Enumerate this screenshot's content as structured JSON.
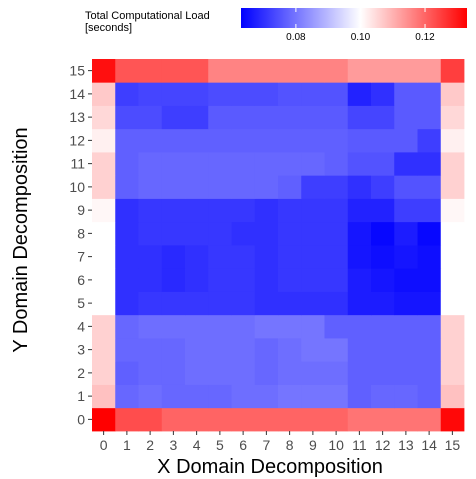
{
  "chart_data": {
    "type": "heatmap",
    "xlabel": "X Domain Decomposition",
    "ylabel": "Y Domain Decomposition",
    "x_categories": [
      "0",
      "1",
      "2",
      "3",
      "4",
      "5",
      "6",
      "7",
      "8",
      "9",
      "10",
      "11",
      "12",
      "13",
      "14",
      "15"
    ],
    "y_categories": [
      "0",
      "1",
      "2",
      "3",
      "4",
      "5",
      "6",
      "7",
      "8",
      "9",
      "10",
      "11",
      "12",
      "13",
      "14",
      "15"
    ],
    "legend": {
      "title_lines": [
        "Total Computational Load",
        "[seconds]"
      ],
      "ticks": [
        "0.08",
        "0.10",
        "0.12"
      ],
      "tick_values": [
        0.08,
        0.1,
        0.12
      ],
      "range": [
        0.063,
        0.133
      ],
      "midpoint": 0.1,
      "placement": "top-right"
    },
    "colors": {
      "low": "#0000ff",
      "mid": "#ffffff",
      "high": "#ff0000"
    },
    "grid": false,
    "z": [
      [
        0.133,
        0.123,
        0.123,
        0.12,
        0.12,
        0.12,
        0.12,
        0.12,
        0.12,
        0.12,
        0.12,
        0.118,
        0.118,
        0.118,
        0.118,
        0.132
      ],
      [
        0.108,
        0.078,
        0.079,
        0.078,
        0.078,
        0.078,
        0.079,
        0.079,
        0.08,
        0.08,
        0.08,
        0.077,
        0.078,
        0.078,
        0.077,
        0.108
      ],
      [
        0.106,
        0.077,
        0.078,
        0.078,
        0.079,
        0.079,
        0.079,
        0.078,
        0.079,
        0.079,
        0.079,
        0.077,
        0.077,
        0.077,
        0.077,
        0.106
      ],
      [
        0.106,
        0.078,
        0.078,
        0.078,
        0.079,
        0.079,
        0.079,
        0.078,
        0.079,
        0.08,
        0.08,
        0.077,
        0.077,
        0.077,
        0.077,
        0.106
      ],
      [
        0.106,
        0.078,
        0.079,
        0.079,
        0.079,
        0.079,
        0.079,
        0.08,
        0.08,
        0.08,
        0.077,
        0.077,
        0.077,
        0.077,
        0.077,
        0.106
      ],
      [
        0.1,
        0.07,
        0.071,
        0.071,
        0.071,
        0.071,
        0.071,
        0.07,
        0.07,
        0.07,
        0.07,
        0.067,
        0.067,
        0.066,
        0.066,
        0.1
      ],
      [
        0.1,
        0.07,
        0.07,
        0.069,
        0.07,
        0.071,
        0.071,
        0.07,
        0.071,
        0.071,
        0.071,
        0.067,
        0.066,
        0.065,
        0.065,
        0.1
      ],
      [
        0.1,
        0.07,
        0.07,
        0.069,
        0.07,
        0.071,
        0.071,
        0.07,
        0.071,
        0.071,
        0.071,
        0.066,
        0.065,
        0.066,
        0.065,
        0.1
      ],
      [
        0.1,
        0.07,
        0.071,
        0.071,
        0.071,
        0.071,
        0.07,
        0.07,
        0.071,
        0.071,
        0.071,
        0.066,
        0.064,
        0.067,
        0.064,
        0.1
      ],
      [
        0.101,
        0.07,
        0.071,
        0.071,
        0.071,
        0.071,
        0.071,
        0.07,
        0.071,
        0.071,
        0.071,
        0.068,
        0.068,
        0.072,
        0.072,
        0.101
      ],
      [
        0.106,
        0.077,
        0.078,
        0.078,
        0.078,
        0.078,
        0.078,
        0.078,
        0.077,
        0.072,
        0.072,
        0.07,
        0.072,
        0.075,
        0.075,
        0.106
      ],
      [
        0.106,
        0.077,
        0.078,
        0.078,
        0.078,
        0.078,
        0.078,
        0.078,
        0.078,
        0.078,
        0.077,
        0.075,
        0.075,
        0.07,
        0.07,
        0.106
      ],
      [
        0.102,
        0.077,
        0.077,
        0.077,
        0.077,
        0.077,
        0.077,
        0.077,
        0.077,
        0.077,
        0.077,
        0.076,
        0.076,
        0.076,
        0.072,
        0.102
      ],
      [
        0.105,
        0.074,
        0.074,
        0.072,
        0.072,
        0.076,
        0.076,
        0.076,
        0.076,
        0.076,
        0.076,
        0.073,
        0.073,
        0.076,
        0.076,
        0.105
      ],
      [
        0.107,
        0.072,
        0.073,
        0.073,
        0.073,
        0.074,
        0.074,
        0.074,
        0.075,
        0.075,
        0.075,
        0.068,
        0.07,
        0.076,
        0.076,
        0.107
      ],
      [
        0.131,
        0.122,
        0.122,
        0.122,
        0.122,
        0.116,
        0.116,
        0.116,
        0.116,
        0.116,
        0.116,
        0.113,
        0.113,
        0.113,
        0.113,
        0.125
      ]
    ]
  }
}
